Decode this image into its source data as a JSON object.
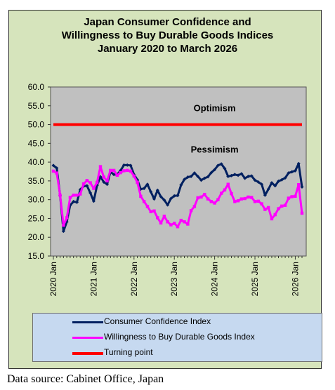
{
  "title_lines": [
    "Japan Consumer Confidence and",
    "Willingness to Buy Durable Goods Indices",
    "January 2020 to March 2026"
  ],
  "source": "Data source: Cabinet Office, Japan",
  "colors": {
    "frame_background": "#d6e4bc",
    "plot_background": "#c0c0c0",
    "legend_background": "#c6d9f0",
    "consumer_confidence": "#002060",
    "durable_goods": "#ff00ff",
    "turning_point": "#ff0000"
  },
  "chart_data": {
    "type": "line",
    "title": "Japan Consumer Confidence and Willingness to Buy Durable Goods Indices January 2020 to March 2026",
    "ylim": [
      15,
      60
    ],
    "y_ticks": [
      "15.0",
      "20.0",
      "25.0",
      "30.0",
      "35.0",
      "40.0",
      "45.0",
      "50.0",
      "55.0",
      "60.0"
    ],
    "x_tick_labels": [
      "2020 Jan",
      "2021 Jan",
      "2022 Jan",
      "2023 Jan",
      "2024 Jan",
      "2025 Jan",
      "2026 Jan"
    ],
    "x_start": "2020-01",
    "x_end": "2026-03",
    "grid": false,
    "annotations": [
      {
        "text": "Optimism",
        "x": "2024-01",
        "y": 54.5
      },
      {
        "text": "Pessimism",
        "x": "2024-01",
        "y": 43.5
      }
    ],
    "series": [
      {
        "name": "Consumer Confidence Index",
        "color": "#002060",
        "marker": "diamond",
        "x": [
          "2020-01",
          "2020-02",
          "2020-03",
          "2020-04",
          "2020-05",
          "2020-06",
          "2020-07",
          "2020-08",
          "2020-09",
          "2020-10",
          "2020-11",
          "2020-12",
          "2021-01",
          "2021-02",
          "2021-03",
          "2021-04",
          "2021-05",
          "2021-06",
          "2021-07",
          "2021-08",
          "2021-09",
          "2021-10",
          "2021-11",
          "2021-12",
          "2022-01",
          "2022-02",
          "2022-03",
          "2022-04",
          "2022-05",
          "2022-06",
          "2022-07",
          "2022-08",
          "2022-09",
          "2022-10",
          "2022-11",
          "2022-12",
          "2023-01",
          "2023-02",
          "2023-03",
          "2023-04",
          "2023-05",
          "2023-06",
          "2023-07",
          "2023-08",
          "2023-09",
          "2023-10",
          "2023-11",
          "2023-12",
          "2024-01",
          "2024-02",
          "2024-03",
          "2024-04",
          "2024-05",
          "2024-06",
          "2024-07",
          "2024-08",
          "2024-09",
          "2024-10",
          "2024-11",
          "2024-12",
          "2025-01",
          "2025-02",
          "2025-03",
          "2025-04",
          "2025-05",
          "2025-06",
          "2025-07",
          "2025-08",
          "2025-09",
          "2025-10",
          "2025-11",
          "2025-12",
          "2026-01",
          "2026-02",
          "2026-03"
        ],
        "values": [
          39.1,
          38.4,
          31.1,
          21.6,
          24.1,
          28.5,
          29.5,
          29.3,
          32.7,
          33.6,
          33.7,
          31.8,
          29.6,
          33.8,
          36.1,
          34.7,
          34.1,
          37.4,
          36.7,
          36.7,
          37.8,
          39.2,
          39.2,
          39.1,
          36.7,
          35.3,
          32.8,
          33.0,
          34.1,
          32.1,
          30.2,
          32.5,
          30.8,
          29.9,
          28.6,
          30.3,
          31.0,
          31.1,
          33.9,
          35.4,
          36.0,
          36.2,
          37.1,
          36.2,
          35.2,
          35.7,
          36.1,
          37.2,
          38.0,
          39.1,
          39.5,
          38.3,
          36.2,
          36.4,
          36.7,
          36.5,
          36.9,
          35.7,
          36.2,
          36.3,
          35.2,
          34.7,
          34.1,
          31.2,
          32.8,
          34.5,
          33.7,
          34.9,
          35.3,
          35.8,
          37.1,
          37.4,
          37.7,
          39.6,
          33.4
        ]
      },
      {
        "name": "Willingness to Buy Durable Goods Index",
        "color": "#ff00ff",
        "marker": "square",
        "x": [
          "2020-01",
          "2020-02",
          "2020-03",
          "2020-04",
          "2020-05",
          "2020-06",
          "2020-07",
          "2020-08",
          "2020-09",
          "2020-10",
          "2020-11",
          "2020-12",
          "2021-01",
          "2021-02",
          "2021-03",
          "2021-04",
          "2021-05",
          "2021-06",
          "2021-07",
          "2021-08",
          "2021-09",
          "2021-10",
          "2021-11",
          "2021-12",
          "2022-01",
          "2022-02",
          "2022-03",
          "2022-04",
          "2022-05",
          "2022-06",
          "2022-07",
          "2022-08",
          "2022-09",
          "2022-10",
          "2022-11",
          "2022-12",
          "2023-01",
          "2023-02",
          "2023-03",
          "2023-04",
          "2023-05",
          "2023-06",
          "2023-07",
          "2023-08",
          "2023-09",
          "2023-10",
          "2023-11",
          "2023-12",
          "2024-01",
          "2024-02",
          "2024-03",
          "2024-04",
          "2024-05",
          "2024-06",
          "2024-07",
          "2024-08",
          "2024-09",
          "2024-10",
          "2024-11",
          "2024-12",
          "2025-01",
          "2025-02",
          "2025-03",
          "2025-04",
          "2025-05",
          "2025-06",
          "2025-07",
          "2025-08",
          "2025-09",
          "2025-10",
          "2025-11",
          "2025-12",
          "2026-01",
          "2026-02",
          "2026-03"
        ],
        "values": [
          37.6,
          37.1,
          31.2,
          23.2,
          25.2,
          30.6,
          31.2,
          31.2,
          31.5,
          34.2,
          35.1,
          34.5,
          33.0,
          34.6,
          38.8,
          36.0,
          35.0,
          37.8,
          37.8,
          36.5,
          37.2,
          37.7,
          37.8,
          37.6,
          36.3,
          34.6,
          30.9,
          29.5,
          28.2,
          26.8,
          27.0,
          25.2,
          23.8,
          25.6,
          24.1,
          23.3,
          23.7,
          22.8,
          24.5,
          24.1,
          23.5,
          27.1,
          28.2,
          30.5,
          30.7,
          31.4,
          30.2,
          29.5,
          29.1,
          30.0,
          31.7,
          32.6,
          34.1,
          31.6,
          29.5,
          29.7,
          30.2,
          30.3,
          30.7,
          30.6,
          29.5,
          29.6,
          28.9,
          27.4,
          27.9,
          24.9,
          26.0,
          27.6,
          28.3,
          28.5,
          30.4,
          30.8,
          30.9,
          34.0,
          26.4
        ]
      },
      {
        "name": "Turning point",
        "color": "#ff0000",
        "marker": "none",
        "x": [
          "2020-01",
          "2026-03"
        ],
        "values": [
          50,
          50
        ]
      }
    ],
    "legend_position": "bottom"
  }
}
